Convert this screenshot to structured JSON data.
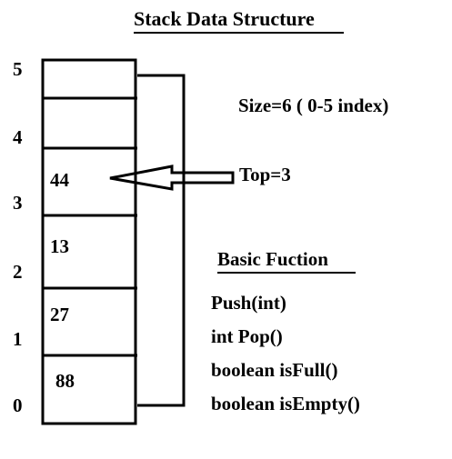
{
  "title": "Stack Data Structure",
  "size_label": "Size=6 ( 0-5 index)",
  "top_label": "Top=3",
  "functions": {
    "heading": "Basic Fuction",
    "items": [
      "Push(int)",
      "int Pop()",
      "boolean isFull()",
      "boolean isEmpty()"
    ]
  },
  "stack": {
    "indices": [
      "5",
      "4",
      "3",
      "2",
      "1",
      "0"
    ],
    "cell_values": [
      "44",
      "13",
      "27",
      "88"
    ]
  }
}
